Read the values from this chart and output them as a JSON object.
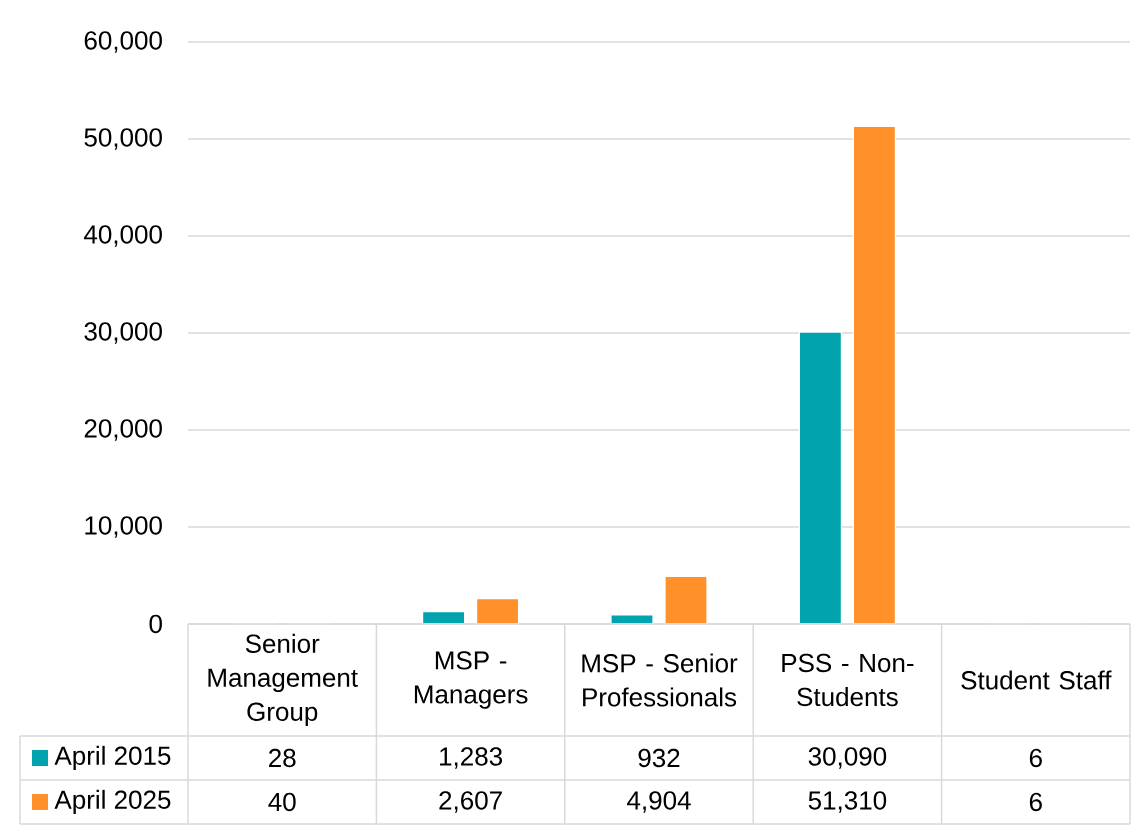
{
  "chart_data": {
    "type": "bar",
    "categories": [
      "Senior Management Group",
      "MSP - Managers",
      "MSP - Senior Professionals",
      "PSS - Non-Students",
      "Student Staff"
    ],
    "series": [
      {
        "name": "April 2015",
        "color": "#00a3ae",
        "values": [
          28,
          1283,
          932,
          30090,
          6
        ],
        "value_labels": [
          "28",
          "1,283",
          "932",
          "30,090",
          "6"
        ]
      },
      {
        "name": "April 2025",
        "color": "#ff902a",
        "values": [
          40,
          2607,
          4904,
          51310,
          6
        ],
        "value_labels": [
          "40",
          "2,607",
          "4,904",
          "51,310",
          "6"
        ]
      }
    ],
    "ylim": [
      0,
      60000
    ],
    "yticks": [
      0,
      {
        "value": 10000,
        "label": "10,000"
      },
      {
        "value": 20000,
        "label": "20,000"
      },
      {
        "value": 30000,
        "label": "30,000"
      },
      {
        "value": 40000,
        "label": "40,000"
      },
      {
        "value": 50000,
        "label": "50,000"
      },
      {
        "value": 60000,
        "label": "60,000"
      }
    ],
    "grid": "y",
    "legend": "bottom"
  }
}
